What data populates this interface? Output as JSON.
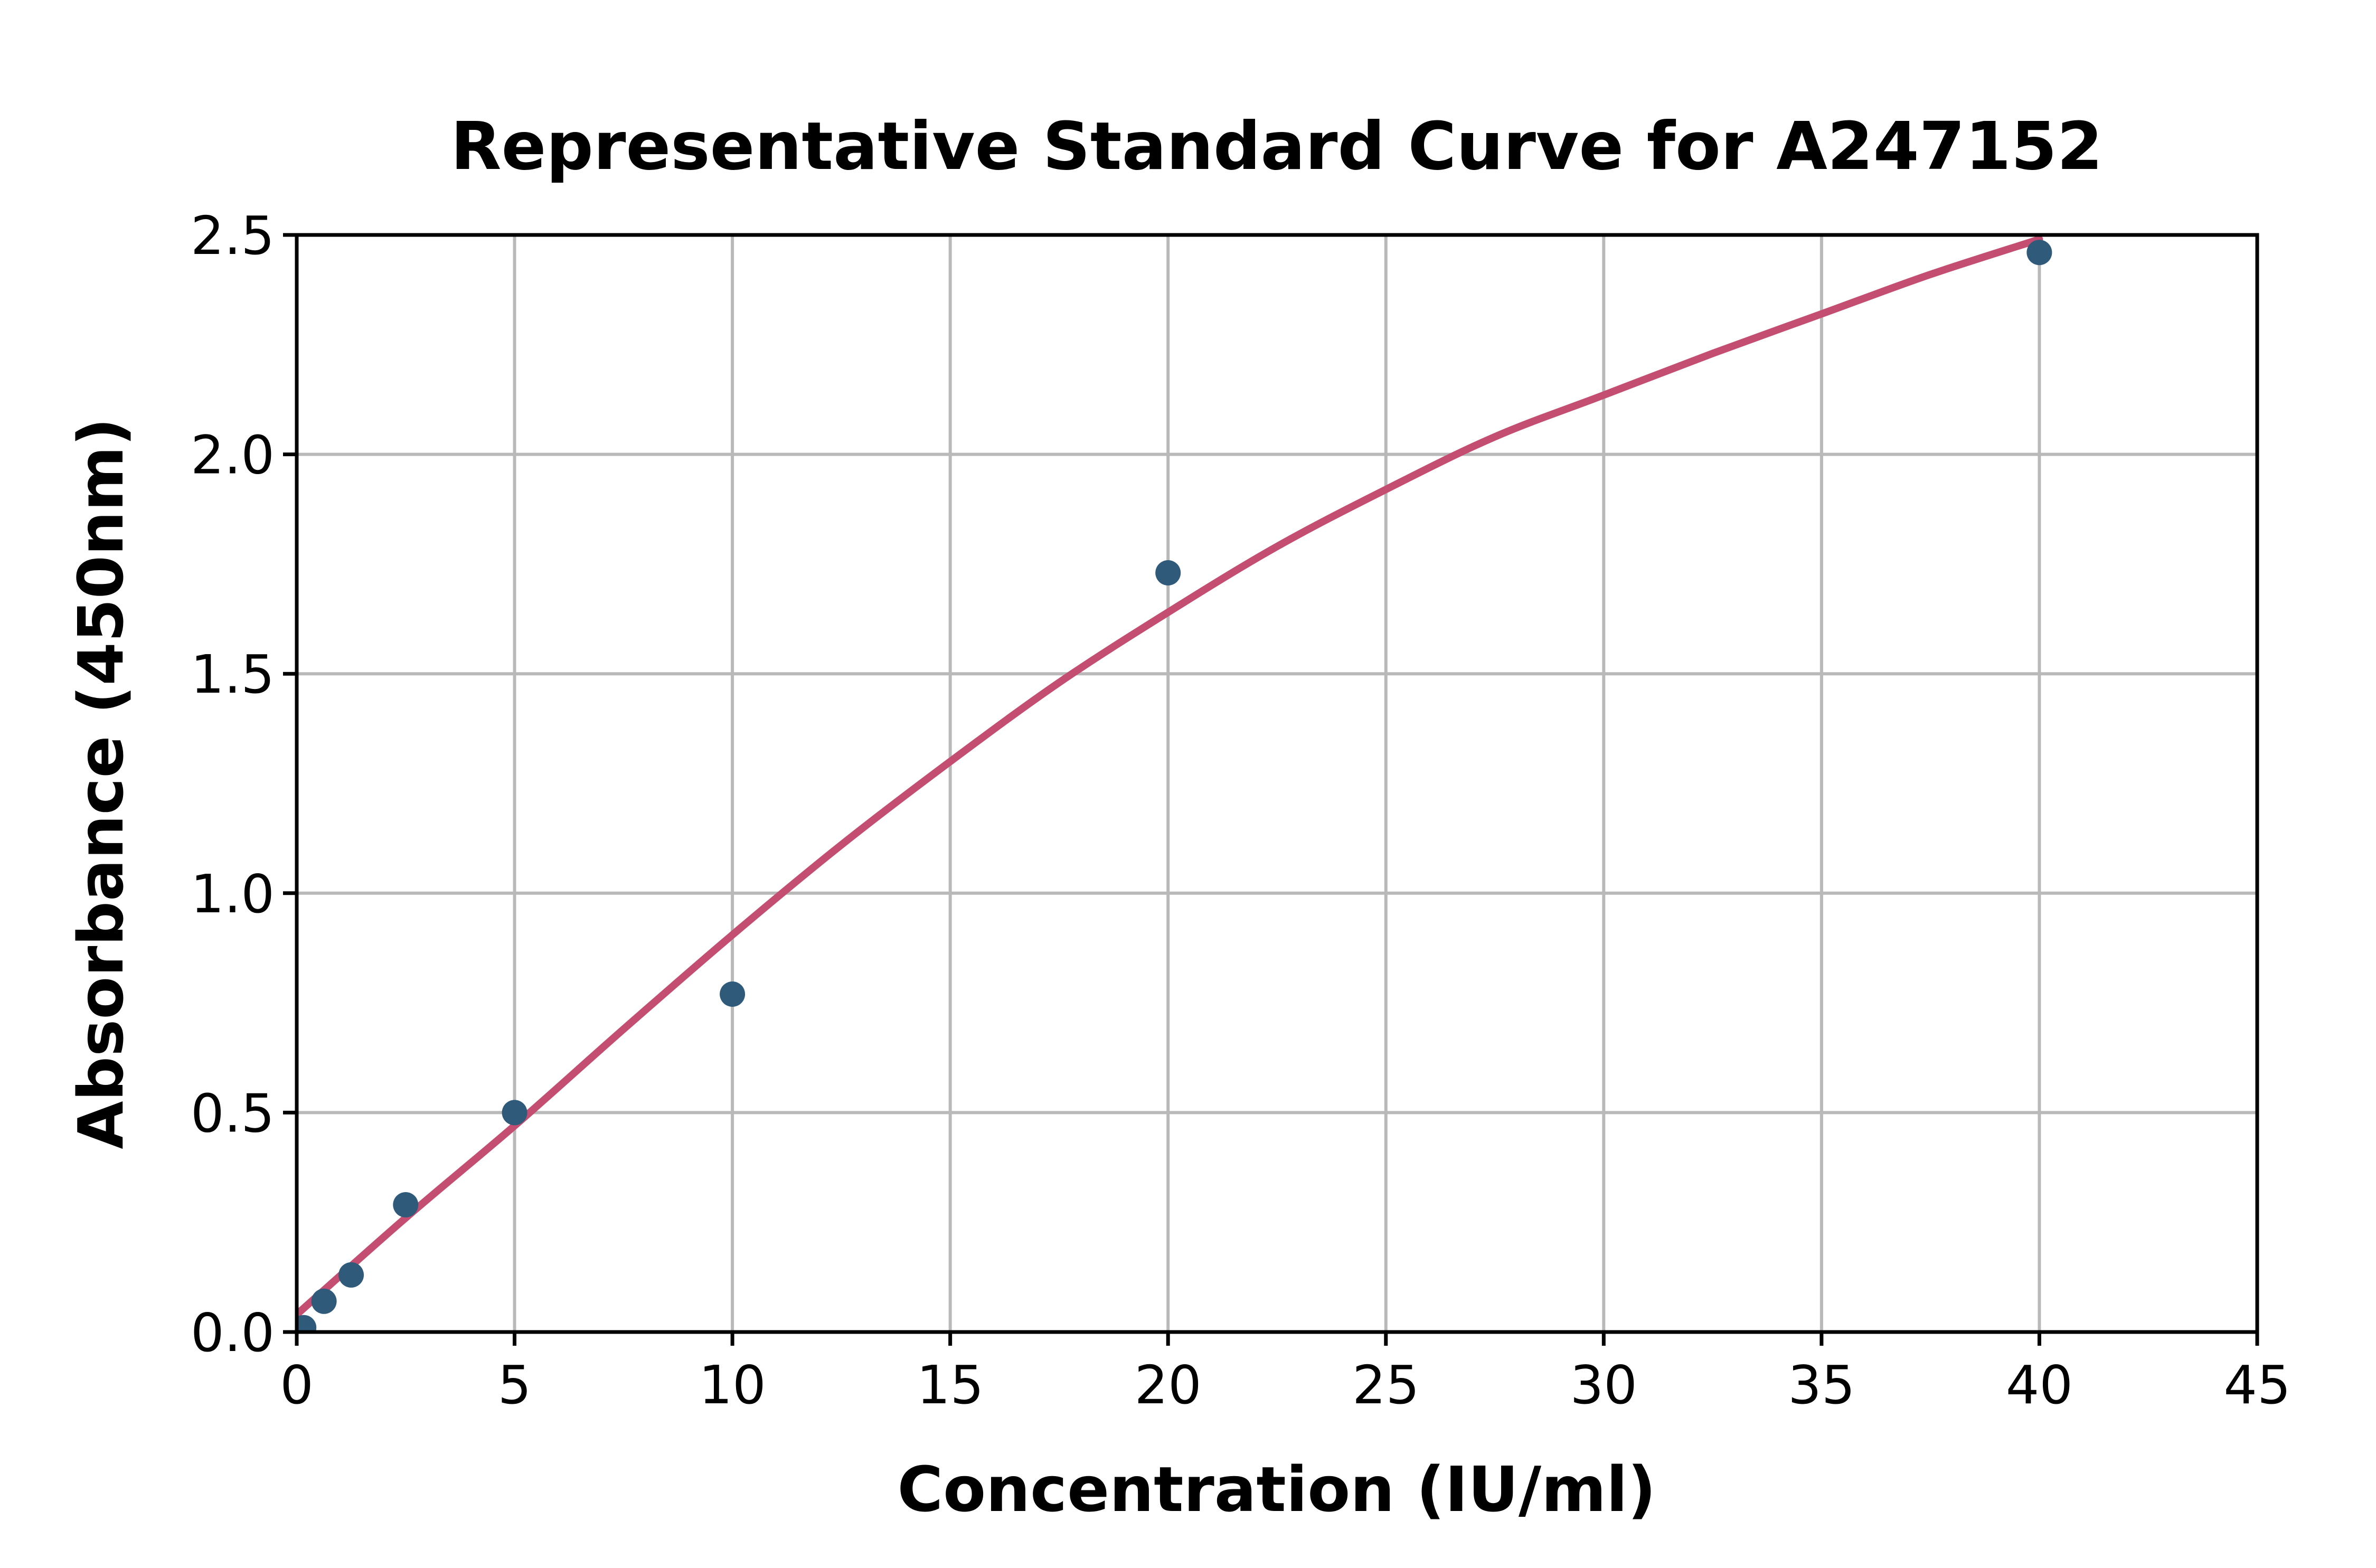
{
  "page": {
    "background": "#ffffff"
  },
  "chart_data": {
    "type": "scatter",
    "title": "Representative Standard Curve for A247152",
    "xlabel": "Concentration (IU/ml)",
    "ylabel": "Absorbance (450nm)",
    "xlim": [
      0,
      45
    ],
    "ylim": [
      0,
      2.5
    ],
    "x_ticks": [
      0,
      5,
      10,
      15,
      20,
      25,
      30,
      35,
      40,
      45
    ],
    "x_tick_labels": [
      "0",
      "5",
      "10",
      "15",
      "20",
      "25",
      "30",
      "35",
      "40",
      "45"
    ],
    "y_ticks": [
      0,
      0.5,
      1,
      1.5,
      2,
      2.5
    ],
    "y_tick_labels": [
      "0.0",
      "0.5",
      "1.0",
      "1.5",
      "2.0",
      "2.5"
    ],
    "grid": true,
    "legend": "none",
    "series": [
      {
        "name": "standard-points",
        "type": "scatter",
        "x": [
          0.16,
          0.625,
          1.25,
          2.5,
          5,
          10,
          20,
          40
        ],
        "y": [
          0.01,
          0.07,
          0.13,
          0.29,
          0.5,
          0.77,
          1.73,
          2.46
        ]
      },
      {
        "name": "fitted-curve",
        "type": "line",
        "x": [
          0,
          2.5,
          5,
          7.5,
          10,
          12.5,
          15,
          17.5,
          20,
          22.5,
          25,
          27.5,
          30,
          32.5,
          35,
          37.5,
          40
        ],
        "y": [
          0.04,
          0.26,
          0.47,
          0.69,
          0.905,
          1.11,
          1.3,
          1.48,
          1.64,
          1.79,
          1.92,
          2.04,
          2.135,
          2.23,
          2.32,
          2.41,
          2.49
        ]
      }
    ],
    "colors": {
      "points": "#2f5a7a",
      "curve": "#c44e72",
      "grid": "#b9b9b9",
      "axis": "#000000",
      "text": "#000000",
      "background": "#ffffff"
    }
  }
}
